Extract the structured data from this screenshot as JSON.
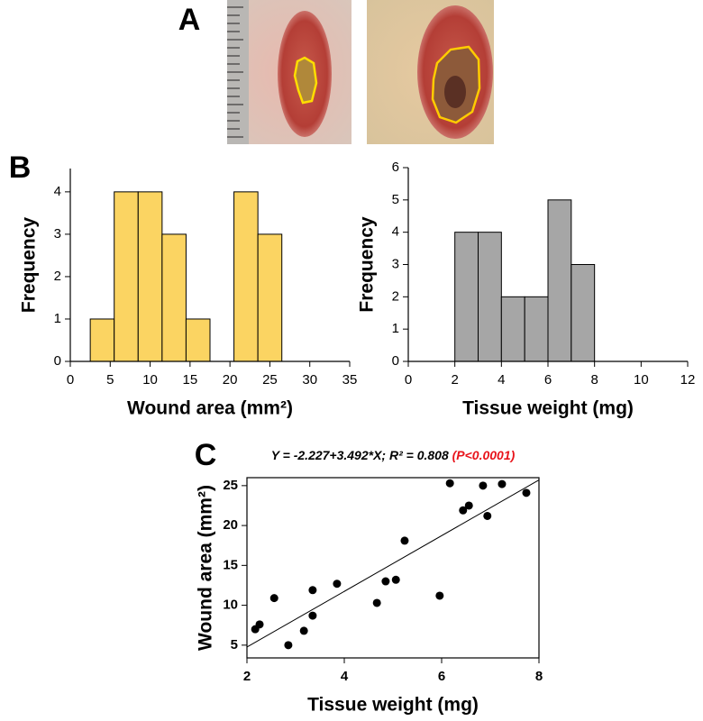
{
  "panel_labels": [
    "A",
    "B",
    "C"
  ],
  "chart_data": [
    {
      "type": "histogram",
      "xlabel": "Wound area (mm²)",
      "ylabel": "Frequency",
      "bins": [
        2.5,
        5.5,
        8.5,
        11.5,
        14.5,
        17.5,
        20.5,
        23.5,
        26.5
      ],
      "values": [
        1,
        4,
        4,
        3,
        1,
        0,
        4,
        3
      ],
      "color": "#fbd462",
      "xlim": [
        0,
        35
      ],
      "xticks": [
        0,
        5,
        10,
        15,
        20,
        25,
        30,
        35
      ],
      "ylim": [
        0,
        4.55
      ],
      "yticks": [
        0,
        1,
        2,
        3,
        4
      ]
    },
    {
      "type": "histogram",
      "xlabel": "Tissue weight (mg)",
      "ylabel": "Frequency",
      "bins": [
        2,
        3,
        4,
        5,
        6,
        7,
        8
      ],
      "values": [
        4,
        4,
        2,
        2,
        5,
        3
      ],
      "color": "#a6a6a6",
      "xlim": [
        0,
        12
      ],
      "xticks": [
        0,
        2,
        4,
        6,
        8,
        10,
        12
      ],
      "ylim": [
        0,
        6
      ],
      "yticks": [
        0,
        1,
        2,
        3,
        4,
        5,
        6
      ]
    },
    {
      "type": "scatter",
      "title": "Y = -2.227+3.492*X; R² = 0.808 ",
      "p_value": "(P<0.0001)",
      "xlabel": "Tissue weight (mg)",
      "ylabel": "Wound area (mm²)",
      "x": [
        2.17,
        2.26,
        2.56,
        2.85,
        3.17,
        3.35,
        3.35,
        3.85,
        4.67,
        4.85,
        5.06,
        5.24,
        5.96,
        6.17,
        6.44,
        6.56,
        6.85,
        6.94,
        7.24,
        7.74
      ],
      "y": [
        7.0,
        7.6,
        10.9,
        5.0,
        6.8,
        8.7,
        11.9,
        12.7,
        10.3,
        13.0,
        13.2,
        18.1,
        11.2,
        25.3,
        21.9,
        22.5,
        25.0,
        21.2,
        25.2,
        24.1
      ],
      "color": "#000000",
      "fit": {
        "intercept": -2.227,
        "slope": 3.492
      },
      "xlim": [
        2,
        8
      ],
      "xticks": [
        2,
        4,
        6,
        8
      ],
      "ylim": [
        3.4,
        26
      ],
      "yticks": [
        5,
        10,
        15,
        20,
        25
      ]
    }
  ]
}
